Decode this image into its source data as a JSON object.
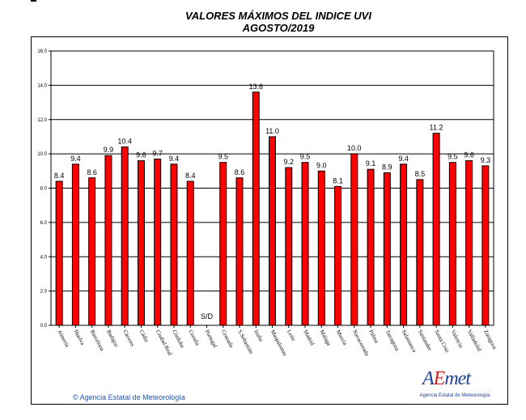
{
  "chart_data": {
    "type": "bar",
    "title": "VALORES MÁXIMOS DEL INDICE UVI",
    "subtitle": "AGOSTO/2019",
    "categories": [
      "Almería",
      "Huelva",
      "Barcelona",
      "Badajoz",
      "Cáceres",
      "Cádiz",
      "Ciudad Real",
      "Córdoba",
      "Coruña",
      "Portugal",
      "Granada",
      "S.Sebastián",
      "Izaña",
      "Maspalomas",
      "León",
      "Madrid",
      "Málaga",
      "Murcia",
      "Navacerrada",
      "Palma",
      "Tarragona",
      "Salamanca",
      "Santander",
      "Santa Cruz",
      "Valencia",
      "Valladolid",
      "Zaragoza"
    ],
    "values": [
      8.4,
      9.4,
      8.6,
      9.9,
      10.4,
      9.6,
      9.7,
      9.4,
      8.4,
      null,
      9.5,
      8.6,
      13.6,
      11.0,
      9.2,
      9.5,
      9.0,
      8.1,
      10.0,
      9.1,
      8.9,
      9.4,
      8.5,
      11.2,
      9.5,
      9.6,
      9.3
    ],
    "value_labels": [
      "8.4",
      "9.4",
      "8.6",
      "9.9",
      "10.4",
      "9.6",
      "9.7",
      "9.4",
      "8.4",
      "S/D",
      "9.5",
      "8.6",
      "13.6",
      "11.0",
      "9.2",
      "9.5",
      "9.0",
      "8.1",
      "10.0",
      "9.1",
      "8.9",
      "9.4",
      "8.5",
      "11.2",
      "9.5",
      "9.6",
      "9.3"
    ],
    "yticks": [
      "0.0",
      "2.0",
      "4.0",
      "6.0",
      "8.0",
      "10.0",
      "12.0",
      "14.0",
      "16.0"
    ],
    "ylim": [
      0,
      16
    ],
    "grid": true,
    "bar_color": "#ff0000",
    "legend": "none"
  },
  "footer": {
    "copyright": "© Agencia Estatal de Meteorología",
    "logo_text_a": "A",
    "logo_text_accent": "E",
    "logo_text_b": "met",
    "logo_subtitle": "Agencia Estatal de Meteorología"
  }
}
